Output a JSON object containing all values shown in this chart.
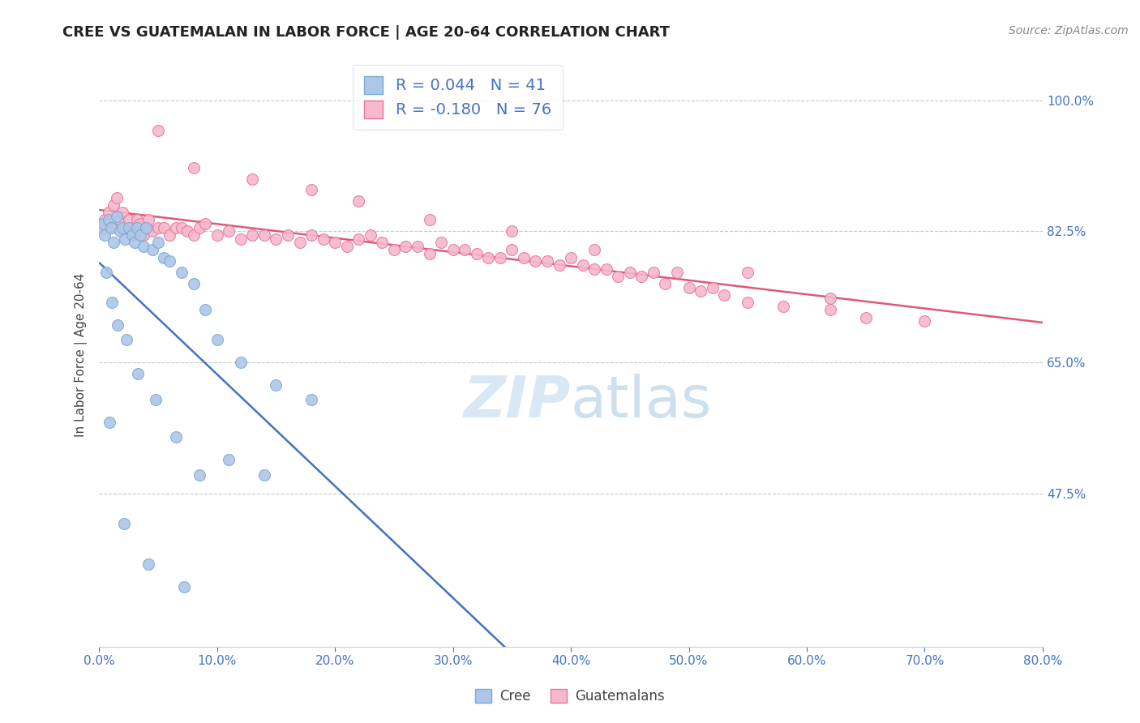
{
  "title": "CREE VS GUATEMALAN IN LABOR FORCE | AGE 20-64 CORRELATION CHART",
  "source": "Source: ZipAtlas.com",
  "ylabel": "In Labor Force | Age 20-64",
  "xlim": [
    0.0,
    80.0
  ],
  "ylim": [
    27.0,
    105.0
  ],
  "yticks": [
    47.5,
    65.0,
    82.5,
    100.0
  ],
  "xticks": [
    0.0,
    10.0,
    20.0,
    30.0,
    40.0,
    50.0,
    60.0,
    70.0,
    80.0
  ],
  "blue_color": "#aec6e8",
  "blue_edge": "#7aaad4",
  "pink_color": "#f5b8cc",
  "pink_edge": "#e87898",
  "blue_line_color": "#4472C4",
  "pink_line_color": "#E05878",
  "dashed_line_color": "#9ab8d8",
  "r_blue": 0.044,
  "n_blue": 41,
  "r_pink": -0.18,
  "n_pink": 76,
  "legend_blue_label": "Cree",
  "legend_pink_label": "Guatemalans",
  "grid_color": "#c8c8c8",
  "background_color": "#ffffff",
  "title_color": "#222222",
  "axis_label_color": "#444444",
  "tick_color": "#4472C4",
  "source_color": "#888888",
  "watermark_color": "#c8dff0",
  "blue_x": [
    0.3,
    0.5,
    0.8,
    1.0,
    1.2,
    1.5,
    1.8,
    2.0,
    2.2,
    2.5,
    2.8,
    3.0,
    3.2,
    3.5,
    3.8,
    4.0,
    4.5,
    5.0,
    5.5,
    6.0,
    7.0,
    8.0,
    9.0,
    10.0,
    12.0,
    15.0,
    18.0,
    0.6,
    1.1,
    1.6,
    2.3,
    3.3,
    4.8,
    6.5,
    8.5,
    11.0,
    14.0,
    0.9,
    2.1,
    4.2,
    7.2
  ],
  "blue_y": [
    83.5,
    82.0,
    84.0,
    83.0,
    81.0,
    84.5,
    82.5,
    83.0,
    81.5,
    83.0,
    82.0,
    81.0,
    83.0,
    82.0,
    80.5,
    83.0,
    80.0,
    81.0,
    79.0,
    78.5,
    77.0,
    75.5,
    72.0,
    68.0,
    65.0,
    62.0,
    60.0,
    77.0,
    73.0,
    70.0,
    68.0,
    63.5,
    60.0,
    55.0,
    50.0,
    52.0,
    50.0,
    57.0,
    43.5,
    38.0,
    35.0
  ],
  "pink_x": [
    0.3,
    0.5,
    0.8,
    1.0,
    1.2,
    1.5,
    1.8,
    2.0,
    2.2,
    2.5,
    2.8,
    3.0,
    3.2,
    3.5,
    3.8,
    4.0,
    4.2,
    4.5,
    5.0,
    5.5,
    6.0,
    6.5,
    7.0,
    7.5,
    8.0,
    8.5,
    9.0,
    10.0,
    11.0,
    12.0,
    13.0,
    14.0,
    15.0,
    16.0,
    17.0,
    18.0,
    19.0,
    20.0,
    21.0,
    22.0,
    23.0,
    24.0,
    25.0,
    26.0,
    27.0,
    28.0,
    29.0,
    30.0,
    31.0,
    32.0,
    33.0,
    34.0,
    35.0,
    36.0,
    37.0,
    38.0,
    39.0,
    40.0,
    41.0,
    42.0,
    43.0,
    44.0,
    45.0,
    46.0,
    47.0,
    48.0,
    49.0,
    50.0,
    51.0,
    52.0,
    53.0,
    55.0,
    58.0,
    62.0,
    65.0,
    70.0
  ],
  "pink_y": [
    83.0,
    84.0,
    85.0,
    83.0,
    86.0,
    87.0,
    84.0,
    85.0,
    83.0,
    84.0,
    82.5,
    83.0,
    84.0,
    83.5,
    82.0,
    83.0,
    84.0,
    82.5,
    83.0,
    83.0,
    82.0,
    83.0,
    83.0,
    82.5,
    82.0,
    83.0,
    83.5,
    82.0,
    82.5,
    81.5,
    82.0,
    82.0,
    81.5,
    82.0,
    81.0,
    82.0,
    81.5,
    81.0,
    80.5,
    81.5,
    82.0,
    81.0,
    80.0,
    80.5,
    80.5,
    79.5,
    81.0,
    80.0,
    80.0,
    79.5,
    79.0,
    79.0,
    80.0,
    79.0,
    78.5,
    78.5,
    78.0,
    79.0,
    78.0,
    77.5,
    77.5,
    76.5,
    77.0,
    76.5,
    77.0,
    75.5,
    77.0,
    75.0,
    74.5,
    75.0,
    74.0,
    73.0,
    72.5,
    72.0,
    71.0,
    70.5
  ],
  "extra_pink_x": [
    5.0,
    8.0,
    13.0,
    18.0,
    22.0,
    28.0,
    35.0,
    42.0,
    55.0,
    62.0
  ],
  "extra_pink_y": [
    96.0,
    91.0,
    89.5,
    88.0,
    86.5,
    84.0,
    82.5,
    80.0,
    77.0,
    73.5
  ],
  "marker_size": 100
}
